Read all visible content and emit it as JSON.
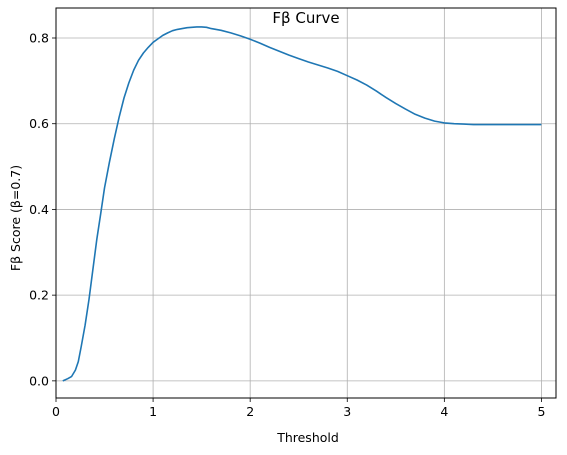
{
  "chart_data": {
    "type": "line",
    "title": "Fβ Curve",
    "xlabel": "Threshold",
    "ylabel": "Fβ Score (β=0.7)",
    "xlim": [
      0,
      5.15
    ],
    "ylim": [
      -0.04,
      0.87
    ],
    "xticks": [
      0,
      1,
      2,
      3,
      4,
      5
    ],
    "xtick_labels": [
      "0",
      "1",
      "2",
      "3",
      "4",
      "5"
    ],
    "yticks": [
      0.0,
      0.2,
      0.4,
      0.6,
      0.8
    ],
    "ytick_labels": [
      "0.0",
      "0.2",
      "0.4",
      "0.6",
      "0.8"
    ],
    "grid": true,
    "line_color": "#1f77b4",
    "series": [
      {
        "x": [
          0.07,
          0.12,
          0.16,
          0.2,
          0.23,
          0.26,
          0.3,
          0.34,
          0.38,
          0.42,
          0.46,
          0.5,
          0.55,
          0.6,
          0.65,
          0.7,
          0.75,
          0.8,
          0.85,
          0.9,
          0.95,
          1.0,
          1.05,
          1.1,
          1.15,
          1.2,
          1.25,
          1.3,
          1.35,
          1.4,
          1.45,
          1.5,
          1.55,
          1.6,
          1.7,
          1.8,
          1.9,
          2.0,
          2.1,
          2.2,
          2.3,
          2.4,
          2.5,
          2.6,
          2.7,
          2.8,
          2.9,
          3.0,
          3.1,
          3.2,
          3.3,
          3.4,
          3.5,
          3.6,
          3.7,
          3.8,
          3.9,
          4.0,
          4.1,
          4.2,
          4.3,
          4.4,
          4.5,
          4.6,
          4.7,
          4.8,
          4.9,
          5.0
        ],
        "y": [
          0.0,
          0.005,
          0.01,
          0.025,
          0.045,
          0.08,
          0.13,
          0.19,
          0.26,
          0.33,
          0.39,
          0.45,
          0.51,
          0.565,
          0.615,
          0.66,
          0.695,
          0.725,
          0.748,
          0.765,
          0.778,
          0.79,
          0.798,
          0.806,
          0.812,
          0.817,
          0.82,
          0.822,
          0.824,
          0.825,
          0.826,
          0.826,
          0.825,
          0.822,
          0.818,
          0.812,
          0.805,
          0.797,
          0.788,
          0.778,
          0.769,
          0.76,
          0.752,
          0.744,
          0.737,
          0.73,
          0.722,
          0.712,
          0.702,
          0.69,
          0.676,
          0.661,
          0.647,
          0.634,
          0.622,
          0.613,
          0.606,
          0.602,
          0.6,
          0.599,
          0.598,
          0.598,
          0.598,
          0.598,
          0.598,
          0.598,
          0.598,
          0.598
        ]
      }
    ]
  }
}
